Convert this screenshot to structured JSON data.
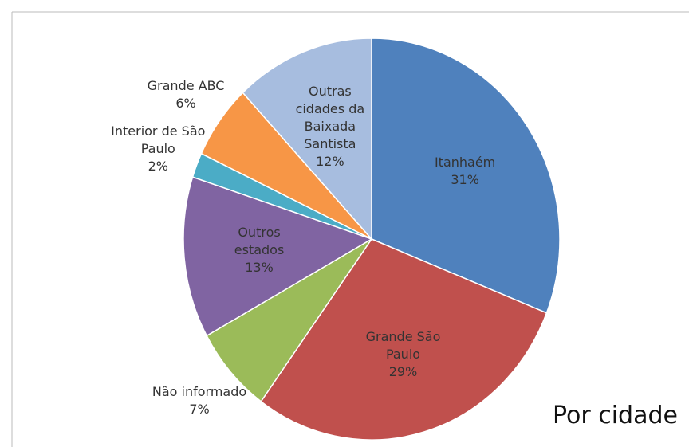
{
  "chart_data": {
    "type": "pie",
    "title": "Por cidade",
    "categories": [
      "Itanhaém",
      "Grande São Paulo",
      "Não informado",
      "Outros estados",
      "Interior de São Paulo",
      "Grande ABC",
      "Outras cidades da Baixada Santista"
    ],
    "values": [
      31,
      29,
      7,
      13,
      2,
      6,
      12
    ],
    "value_labels": [
      "31%",
      "29%",
      "7%",
      "13%",
      "2%",
      "6%",
      "12%"
    ],
    "colors": [
      "#4f81bd",
      "#c0504d",
      "#9bbb59",
      "#8064a2",
      "#4bacc6",
      "#f79646",
      "#a7bddf"
    ]
  }
}
